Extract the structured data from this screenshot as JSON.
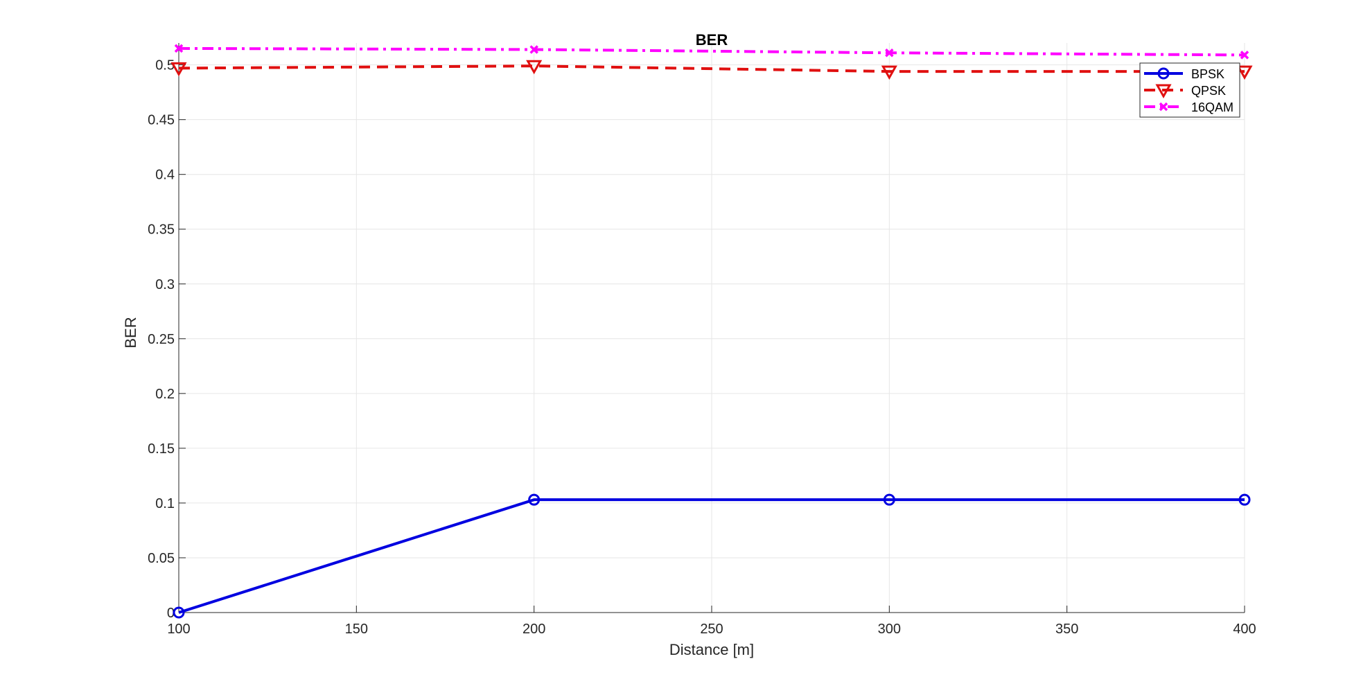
{
  "chart_data": {
    "type": "line",
    "title": "BER",
    "xlabel": "Distance [m]",
    "ylabel": "BER",
    "x": [
      100,
      200,
      300,
      400
    ],
    "xlim": [
      100,
      400
    ],
    "ylim": [
      0,
      0.52
    ],
    "xticks": [
      100,
      150,
      200,
      250,
      300,
      350,
      400
    ],
    "yticks": [
      0,
      0.05,
      0.1,
      0.15,
      0.2,
      0.25,
      0.3,
      0.35,
      0.4,
      0.45,
      0.5
    ],
    "xtick_labels": [
      "100",
      "150",
      "200",
      "250",
      "300",
      "350",
      "400"
    ],
    "ytick_labels": [
      "0",
      "0.05",
      "0.1",
      "0.15",
      "0.2",
      "0.25",
      "0.3",
      "0.35",
      "0.4",
      "0.45",
      "0.5"
    ],
    "grid": true,
    "legend_position": "top-right",
    "series": [
      {
        "name": "BPSK",
        "values": [
          0,
          0.103,
          0.103,
          0.103
        ],
        "color": "#0000e0",
        "line_style": "solid",
        "marker": "circle"
      },
      {
        "name": "QPSK",
        "values": [
          0.497,
          0.499,
          0.494,
          0.494
        ],
        "color": "#e01010",
        "line_style": "dashed",
        "marker": "triangle-down"
      },
      {
        "name": "16QAM",
        "values": [
          0.515,
          0.514,
          0.511,
          0.509
        ],
        "color": "#ff00ff",
        "line_style": "dash-dot",
        "marker": "x"
      }
    ]
  }
}
